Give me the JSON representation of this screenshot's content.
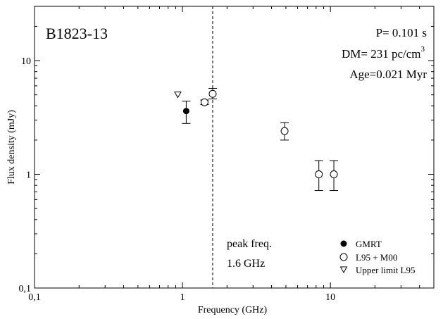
{
  "chart_data": {
    "type": "scatter",
    "title": "B1823-13",
    "xlabel": "Frequency (GHz)",
    "ylabel": "Flux  density (mJy)",
    "x_scale": "log",
    "y_scale": "log",
    "xlim": [
      0.1,
      50
    ],
    "ylim": [
      0.1,
      30
    ],
    "x_ticks": [
      {
        "value": 0.1,
        "label": "0,1"
      },
      {
        "value": 1,
        "label": "1"
      },
      {
        "value": 10,
        "label": "10"
      }
    ],
    "y_ticks": [
      {
        "value": 0.1,
        "label": "0,1"
      },
      {
        "value": 1,
        "label": "1"
      },
      {
        "value": 10,
        "label": "10"
      }
    ],
    "grid": false,
    "legend_position": "bottom-right",
    "series": [
      {
        "name": "GMRT",
        "marker": "filled-circle",
        "points": [
          {
            "x": 1.06,
            "y": 3.6,
            "ylo": 2.8,
            "yhi": 4.4
          }
        ]
      },
      {
        "name": "L95 + M00",
        "marker": "open-circle",
        "points": [
          {
            "x": 1.41,
            "y": 4.3,
            "ylo": 4.1,
            "yhi": 4.5
          },
          {
            "x": 1.6,
            "y": 5.1,
            "ylo": 4.6,
            "yhi": 5.7
          },
          {
            "x": 4.9,
            "y": 2.4,
            "ylo": 2.0,
            "yhi": 2.85
          },
          {
            "x": 8.35,
            "y": 1.0,
            "ylo": 0.72,
            "yhi": 1.32
          },
          {
            "x": 10.55,
            "y": 1.0,
            "ylo": 0.72,
            "yhi": 1.32
          }
        ]
      },
      {
        "name": "Upper limit L95",
        "marker": "open-triangle-down",
        "points": [
          {
            "x": 0.93,
            "y": 5.0
          }
        ]
      }
    ],
    "reference_line": {
      "x": 1.6,
      "style": "dashed"
    },
    "annotations": {
      "period": "P= 0.101 s",
      "dm_prefix": "DM= 231 pc/cm",
      "dm_superscript": "3",
      "age": "Age=0.021 Myr",
      "peak_line1": "peak freq.",
      "peak_line2": "1.6 GHz"
    }
  }
}
